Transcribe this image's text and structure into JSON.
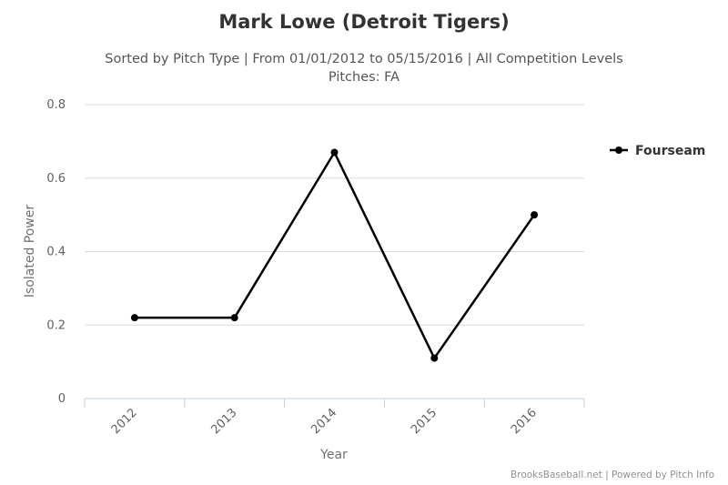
{
  "chart_data": {
    "type": "line",
    "title": "Mark Lowe (Detroit Tigers)",
    "subtitle_line1": "Sorted by Pitch Type | From 01/01/2012 to 05/15/2016 | All Competition Levels",
    "subtitle_line2": "Pitches: FA",
    "xlabel": "Year",
    "ylabel": "Isolated Power",
    "categories": [
      "2012",
      "2013",
      "2014",
      "2015",
      "2016"
    ],
    "series": [
      {
        "name": "Fourseam",
        "color": "#000000",
        "values": [
          0.22,
          0.22,
          0.67,
          0.11,
          0.5
        ]
      }
    ],
    "ylim": [
      0,
      0.8
    ],
    "yticks": [
      "0",
      "0.2",
      "0.4",
      "0.6",
      "0.8"
    ],
    "grid": true,
    "legend": "right"
  },
  "credits": "BrooksBaseball.net | Powered by Pitch Info"
}
